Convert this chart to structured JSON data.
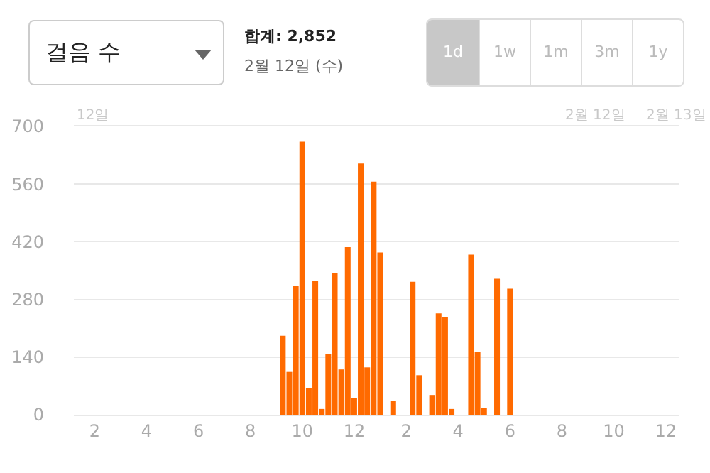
{
  "chart_data": {
    "type": "bar",
    "title": "걸음 수",
    "subtitle": "합계: 2,852",
    "annotations": [
      "2월 12일 (수)",
      "1d",
      "1w",
      "1m",
      "3m",
      "1y",
      "12일",
      "2월 12일",
      "2월 13일"
    ],
    "x": [
      "--02-12T09:15",
      "--02-12T09:30",
      "--02-12T09:45",
      "--02-12T10:00",
      "--02-12T10:15",
      "--02-12T10:30",
      "--02-12T10:45",
      "--02-12T11:00",
      "--02-12T11:15",
      "--02-12T11:30",
      "--02-12T11:45",
      "--02-12T12:00",
      "--02-12T12:15",
      "--02-12T12:30",
      "--02-12T12:45",
      "--02-12T13:00",
      "--02-12T13:30",
      "--02-12T14:15",
      "--02-12T14:30",
      "--02-12T15:00",
      "--02-12T15:15",
      "--02-12T15:30",
      "--02-12T15:45",
      "--02-12T16:30",
      "--02-12T16:45",
      "--02-12T17:00",
      "--02-12T17:30",
      "--02-12T18:00"
    ],
    "values": [
      192,
      104,
      313,
      663,
      65,
      325,
      14,
      147,
      344,
      110,
      407,
      41,
      610,
      115,
      566,
      394,
      33,
      323,
      96,
      48,
      246,
      237,
      14,
      389,
      153,
      17,
      330,
      306
    ],
    "color": "#ff6a00",
    "xlim": [
      "--02-12T01:12",
      "--02-13T00:30"
    ],
    "xticks": [
      {
        "value": "--02-12T02:00",
        "label": "2"
      },
      {
        "value": "--02-12T04:00",
        "label": "4"
      },
      {
        "value": "--02-12T06:00",
        "label": "6"
      },
      {
        "value": "--02-12T08:00",
        "label": "8"
      },
      {
        "value": "--02-12T10:00",
        "label": "10"
      },
      {
        "value": "--02-12T12:00",
        "label": "12"
      },
      {
        "value": "--02-12T14:00",
        "label": "2"
      },
      {
        "value": "--02-12T16:00",
        "label": "4"
      },
      {
        "value": "--02-12T18:00",
        "label": "6"
      },
      {
        "value": "--02-12T20:00",
        "label": "8"
      },
      {
        "value": "--02-12T22:00",
        "label": "10"
      },
      {
        "value": "--02-13T00:00",
        "label": "12"
      }
    ],
    "ylim": [
      0,
      700
    ],
    "yticks": [
      0,
      140,
      280,
      420,
      560,
      700
    ],
    "grid": "y"
  }
}
